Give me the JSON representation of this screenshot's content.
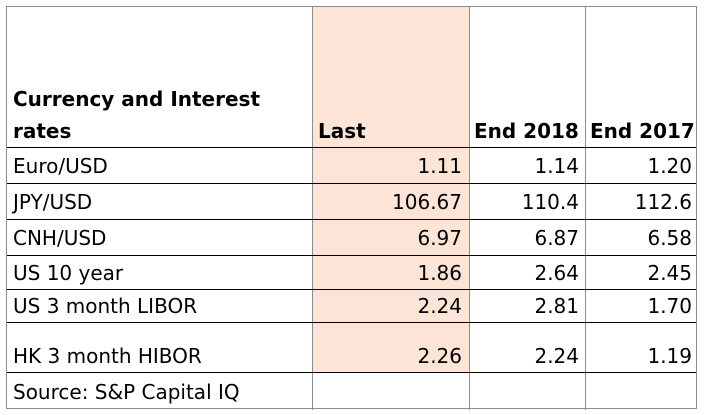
{
  "header": {
    "label_line1": "Currency and Interest",
    "label_line2": "rates",
    "last": "Last",
    "end2018": "End 2018",
    "end2017": "End 2017"
  },
  "rows": [
    {
      "label": "Euro/USD",
      "last": "1.11",
      "end2018": "1.14",
      "end2017": "1.20"
    },
    {
      "label": "JPY/USD",
      "last": "106.67",
      "end2018": "110.4",
      "end2017": "112.6"
    },
    {
      "label": "CNH/USD",
      "last": "6.97",
      "end2018": "6.87",
      "end2017": "6.58"
    },
    {
      "label": "US 10 year",
      "last": "1.86",
      "end2018": "2.64",
      "end2017": "2.45"
    },
    {
      "label": "US 3 month LIBOR",
      "last": "2.24",
      "end2018": "2.81",
      "end2017": "1.70"
    },
    {
      "label": "HK 3 month HIBOR",
      "last": "2.26",
      "end2018": "2.24",
      "end2017": "1.19"
    }
  ],
  "footer": {
    "source": "Source: S&P Capital IQ"
  },
  "colors": {
    "last_column_fill": "#fce4d6",
    "border": "#8c8c8c",
    "row_line": "#000000"
  }
}
